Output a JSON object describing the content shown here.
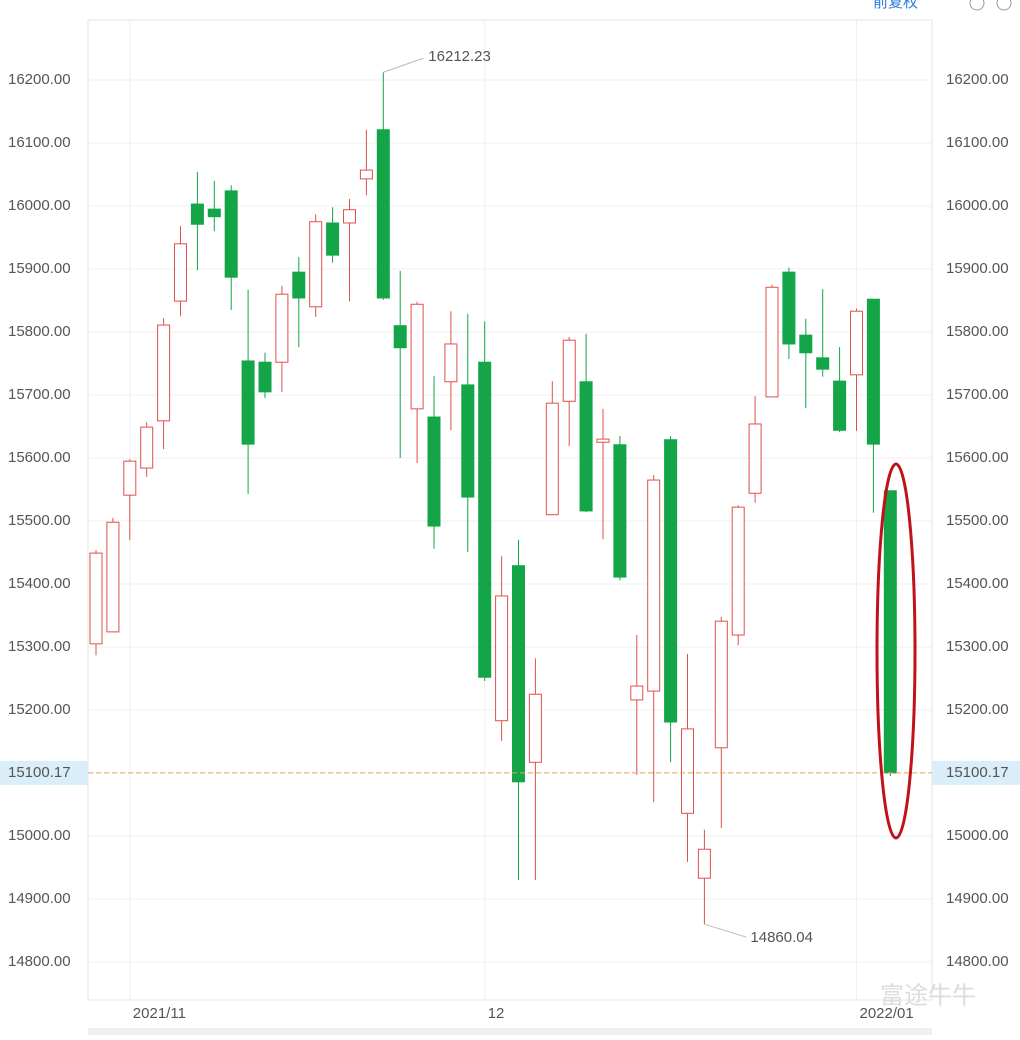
{
  "chart_data": {
    "type": "candlestick",
    "adjust_label": "前复权",
    "watermark": "富途牛牛",
    "ylim": [
      14739.7,
      16295.2
    ],
    "yticks": [
      {
        "value": 14800,
        "label": "14800.00"
      },
      {
        "value": 14900,
        "label": "14900.00"
      },
      {
        "value": 15000,
        "label": "15000.00"
      },
      {
        "value": 15100,
        "label": "15100.00"
      },
      {
        "value": 15200,
        "label": "15200.00"
      },
      {
        "value": 15300,
        "label": "15300.00"
      },
      {
        "value": 15400,
        "label": "15400.00"
      },
      {
        "value": 15500,
        "label": "15500.00"
      },
      {
        "value": 15600,
        "label": "15600.00"
      },
      {
        "value": 15700,
        "label": "15700.00"
      },
      {
        "value": 15800,
        "label": "15800.00"
      },
      {
        "value": 15900,
        "label": "15900.00"
      },
      {
        "value": 16000,
        "label": "16000.00"
      },
      {
        "value": 16100,
        "label": "16100.00"
      },
      {
        "value": 16200,
        "label": "16200.00"
      }
    ],
    "xticks": [
      {
        "value": 2,
        "label": "2021/11"
      },
      {
        "value": 23,
        "label": "12"
      },
      {
        "value": 45,
        "label": "2022/01"
      }
    ],
    "grid": true,
    "up_color": "#e0504a",
    "down_color": "#13a548",
    "last_price": 15100.17,
    "last_price_color": "#f0a050",
    "open": [
      15305,
      15324,
      15541,
      15584,
      15659,
      15849,
      16003,
      15995,
      16024,
      15754,
      15752,
      15752,
      15895,
      15840,
      15973,
      15973,
      16043,
      16121,
      15810,
      15678,
      15665,
      15721,
      15716,
      15752,
      15183,
      15429,
      15117,
      15510,
      15690,
      15721,
      15625,
      15621,
      15216,
      15230,
      15629,
      15036,
      14933,
      15140,
      15319,
      15544,
      15697,
      15895,
      15795,
      15759,
      15722,
      15732,
      15852,
      15548
    ],
    "high": [
      15454,
      15505,
      15598,
      15657,
      15822,
      15968,
      16054,
      16040,
      16033,
      15867,
      15767,
      15873,
      15919,
      15987,
      15998,
      16011,
      16121,
      16212.23,
      15897,
      15848,
      15730,
      15833,
      15829,
      15817,
      15444,
      15470,
      15282,
      15722,
      15792,
      15797,
      15678,
      15635,
      15319,
      15573,
      15635,
      15289,
      15010,
      15348,
      15525,
      15698,
      15875,
      15902,
      15821,
      15868,
      15776,
      15837,
      15852,
      15548
    ],
    "low": [
      15287,
      15324,
      15470,
      15570,
      15614,
      15825,
      15898,
      15960,
      15835,
      15543,
      15695,
      15705,
      15776,
      15824,
      15910,
      15849,
      16017,
      15851,
      15600,
      15592,
      15456,
      15644,
      15451,
      15246,
      15151,
      14930,
      14930,
      15510,
      15619,
      15514,
      15471,
      15406,
      15097,
      15054,
      15117,
      14959,
      14860.04,
      15013,
      15303,
      15529,
      15697,
      15757,
      15679,
      15729,
      15641,
      15643,
      15513,
      15095
    ],
    "close": [
      15449,
      15498,
      15595,
      15649,
      15811,
      15940,
      15971,
      15983,
      15887,
      15622,
      15705,
      15860,
      15854,
      15975,
      15922,
      15994,
      16057,
      15854,
      15775,
      15844,
      15492,
      15781,
      15538,
      15252,
      15381,
      15086,
      15225,
      15687,
      15787,
      15516,
      15630,
      15411,
      15238,
      15565,
      15181,
      15170,
      14979,
      15341,
      15522,
      15654,
      15871,
      15781,
      15767,
      15741,
      15644,
      15833,
      15622,
      15100.17
    ]
  }
}
